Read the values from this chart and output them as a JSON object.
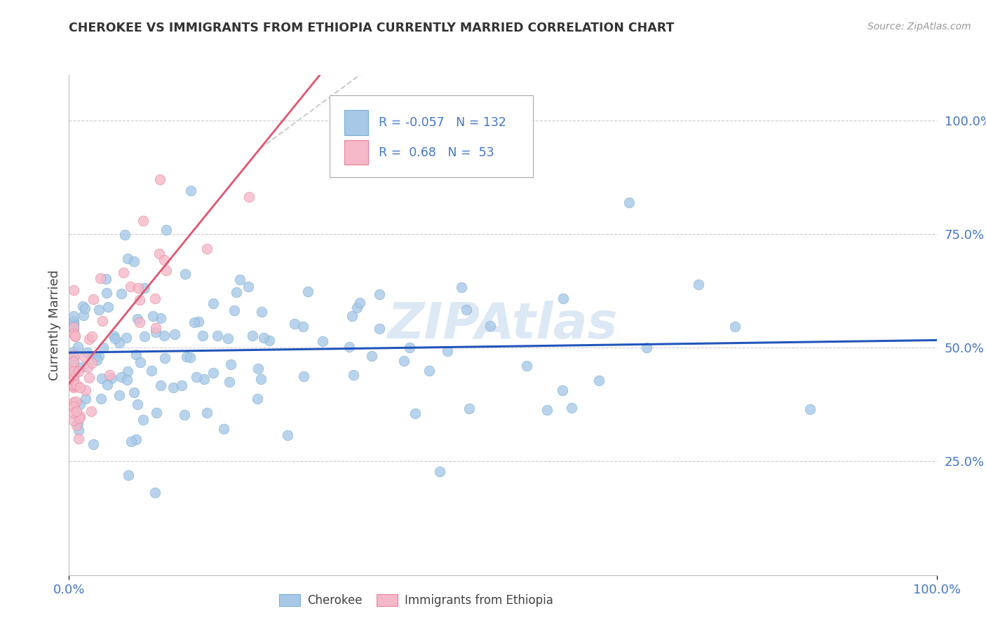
{
  "title": "CHEROKEE VS IMMIGRANTS FROM ETHIOPIA CURRENTLY MARRIED CORRELATION CHART",
  "source": "Source: ZipAtlas.com",
  "ylabel": "Currently Married",
  "cherokee_R": -0.057,
  "cherokee_N": 132,
  "ethiopia_R": 0.68,
  "ethiopia_N": 53,
  "cherokee_color": "#a8c8e8",
  "cherokee_edge": "#7aafd4",
  "ethiopia_color": "#f4b8c8",
  "ethiopia_edge": "#e8849a",
  "cherokee_line_color": "#2255bb",
  "ethiopia_line_color": "#e05570",
  "trend_line_color": "#cccccc",
  "legend_label_cherokee": "Cherokee",
  "legend_label_ethiopia": "Immigrants from Ethiopia",
  "background_color": "#ffffff",
  "grid_color": "#cccccc",
  "title_color": "#333333",
  "source_color": "#999999",
  "tick_color": "#4477cc",
  "watermark_color": "#dde8f5"
}
